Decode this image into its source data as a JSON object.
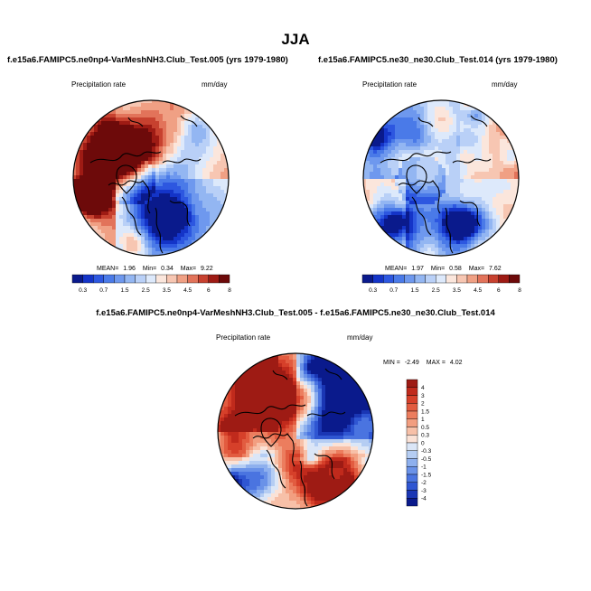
{
  "figure": {
    "title": "JJA",
    "diff_title": "f.e15a6.FAMIPC5.ne0np4-VarMeshNH3.Club_Test.005 - f.e15a6.FAMIPC5.ne30_ne30.Club_Test.014"
  },
  "chart_data": [
    {
      "type": "heatmap",
      "projection": "polar-stereographic-north",
      "title": "f.e15a6.FAMIPC5.ne0np4-VarMeshNH3.Club_Test.005 (yrs 1979-1980)",
      "variable": "Precipitation rate",
      "units": "mm/day",
      "stats": {
        "mean_label": "MEAN=",
        "mean": "1.96",
        "min_label": "Min=",
        "min": "0.34",
        "max_label": "Max=",
        "max": "9.22"
      },
      "colorbar": {
        "orientation": "horizontal",
        "levels": [
          "0.3",
          "0.7",
          "1",
          "1.5",
          "2",
          "2.5",
          "3",
          "3.5",
          "4",
          "4.5",
          "5",
          "6",
          "7",
          "8"
        ],
        "tick_labels": [
          "0.3",
          "0.7",
          "1.5",
          "2.5",
          "3.5",
          "4.5",
          "6",
          "8"
        ],
        "colors": [
          "#0a1a8c",
          "#1434c8",
          "#2d57e0",
          "#4a7ae8",
          "#6e98ee",
          "#93b6f2",
          "#b9d0f7",
          "#dde9fb",
          "#fbe6dc",
          "#f7c6b2",
          "#f0a084",
          "#e2735a",
          "#c7412f",
          "#9e1b14",
          "#6d0a0a"
        ]
      }
    },
    {
      "type": "heatmap",
      "projection": "polar-stereographic-north",
      "title": "f.e15a6.FAMIPC5.ne30_ne30.Club_Test.014 (yrs 1979-1980)",
      "variable": "Precipitation rate",
      "units": "mm/day",
      "stats": {
        "mean_label": "MEAN=",
        "mean": "1.97",
        "min_label": "Min=",
        "min": "0.58",
        "max_label": "Max=",
        "max": "7.62"
      },
      "colorbar": {
        "orientation": "horizontal",
        "levels": [
          "0.3",
          "0.7",
          "1",
          "1.5",
          "2",
          "2.5",
          "3",
          "3.5",
          "4",
          "4.5",
          "5",
          "6",
          "7",
          "8"
        ],
        "tick_labels": [
          "0.3",
          "0.7",
          "1.5",
          "2.5",
          "3.5",
          "4.5",
          "6",
          "8"
        ],
        "colors": [
          "#0a1a8c",
          "#1434c8",
          "#2d57e0",
          "#4a7ae8",
          "#6e98ee",
          "#93b6f2",
          "#b9d0f7",
          "#dde9fb",
          "#fbe6dc",
          "#f7c6b2",
          "#f0a084",
          "#e2735a",
          "#c7412f",
          "#9e1b14",
          "#6d0a0a"
        ]
      }
    },
    {
      "type": "heatmap",
      "projection": "polar-stereographic-north",
      "title": "f.e15a6.FAMIPC5.ne0np4-VarMeshNH3.Club_Test.005 - f.e15a6.FAMIPC5.ne30_ne30.Club_Test.014",
      "variable": "Precipitation rate",
      "units": "mm/day",
      "stats": {
        "min_label": "MIN =",
        "min": "-2.49",
        "max_label": "MAX =",
        "max": "4.02"
      },
      "colorbar": {
        "orientation": "vertical",
        "tick_labels": [
          "4",
          "3",
          "2",
          "1.5",
          "1",
          "0.5",
          "0.3",
          "0",
          "-0.3",
          "-0.5",
          "-1",
          "-1.5",
          "-2",
          "-3",
          "-4"
        ],
        "colors": [
          "#9e1b14",
          "#c02a1c",
          "#d6402a",
          "#e25c40",
          "#ec7d5e",
          "#f29e80",
          "#f7c0a8",
          "#fbe2d6",
          "#dbe6f7",
          "#b5cdf3",
          "#8eb0ee",
          "#6a92e8",
          "#4a74e0",
          "#2f56d2",
          "#1a36b4",
          "#0a1a8c"
        ]
      }
    }
  ]
}
